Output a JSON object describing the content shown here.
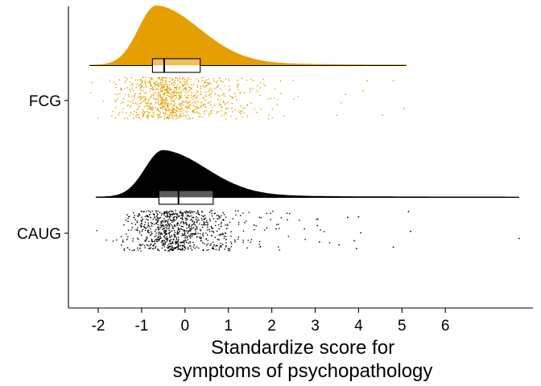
{
  "chart_data": {
    "type": "raincloud",
    "title": "",
    "xlabel_lines": [
      "Standardize score for",
      "symptoms of psychopathology"
    ],
    "ylabel": "",
    "x_ticks": [
      "-2",
      "-1",
      "0",
      "1",
      "2",
      "3",
      "4",
      "5",
      "6"
    ],
    "xlim": [
      -2.7,
      8.2
    ],
    "categories": [
      "FCG",
      "CAUG"
    ],
    "grid": false,
    "series": [
      {
        "name": "FCG",
        "color": "#E69F00",
        "point_color": "#E69F00",
        "range": [
          -2.2,
          5.1
        ],
        "mode": -0.65,
        "box": {
          "q1": -0.75,
          "median": -0.48,
          "q3": 0.35,
          "whisker_low": -2.2,
          "whisker_high": 5.1
        },
        "outlier_points": [
          5.05,
          4.8,
          4.55,
          4.2,
          4.1,
          3.7,
          3.6,
          3.5
        ]
      },
      {
        "name": "CAUG",
        "color": "#000000",
        "point_color": "#000000",
        "range": [
          -2.05,
          7.7
        ],
        "mode": -0.5,
        "box": {
          "q1": -0.6,
          "median": -0.15,
          "q3": 0.65,
          "whisker_low": -2.05,
          "whisker_high": 7.7
        },
        "outlier_points": [
          7.7,
          5.2,
          5.15,
          4.8,
          4.05,
          4.0,
          3.95,
          3.9,
          3.75,
          3.55,
          3.1,
          3.05
        ]
      }
    ]
  }
}
